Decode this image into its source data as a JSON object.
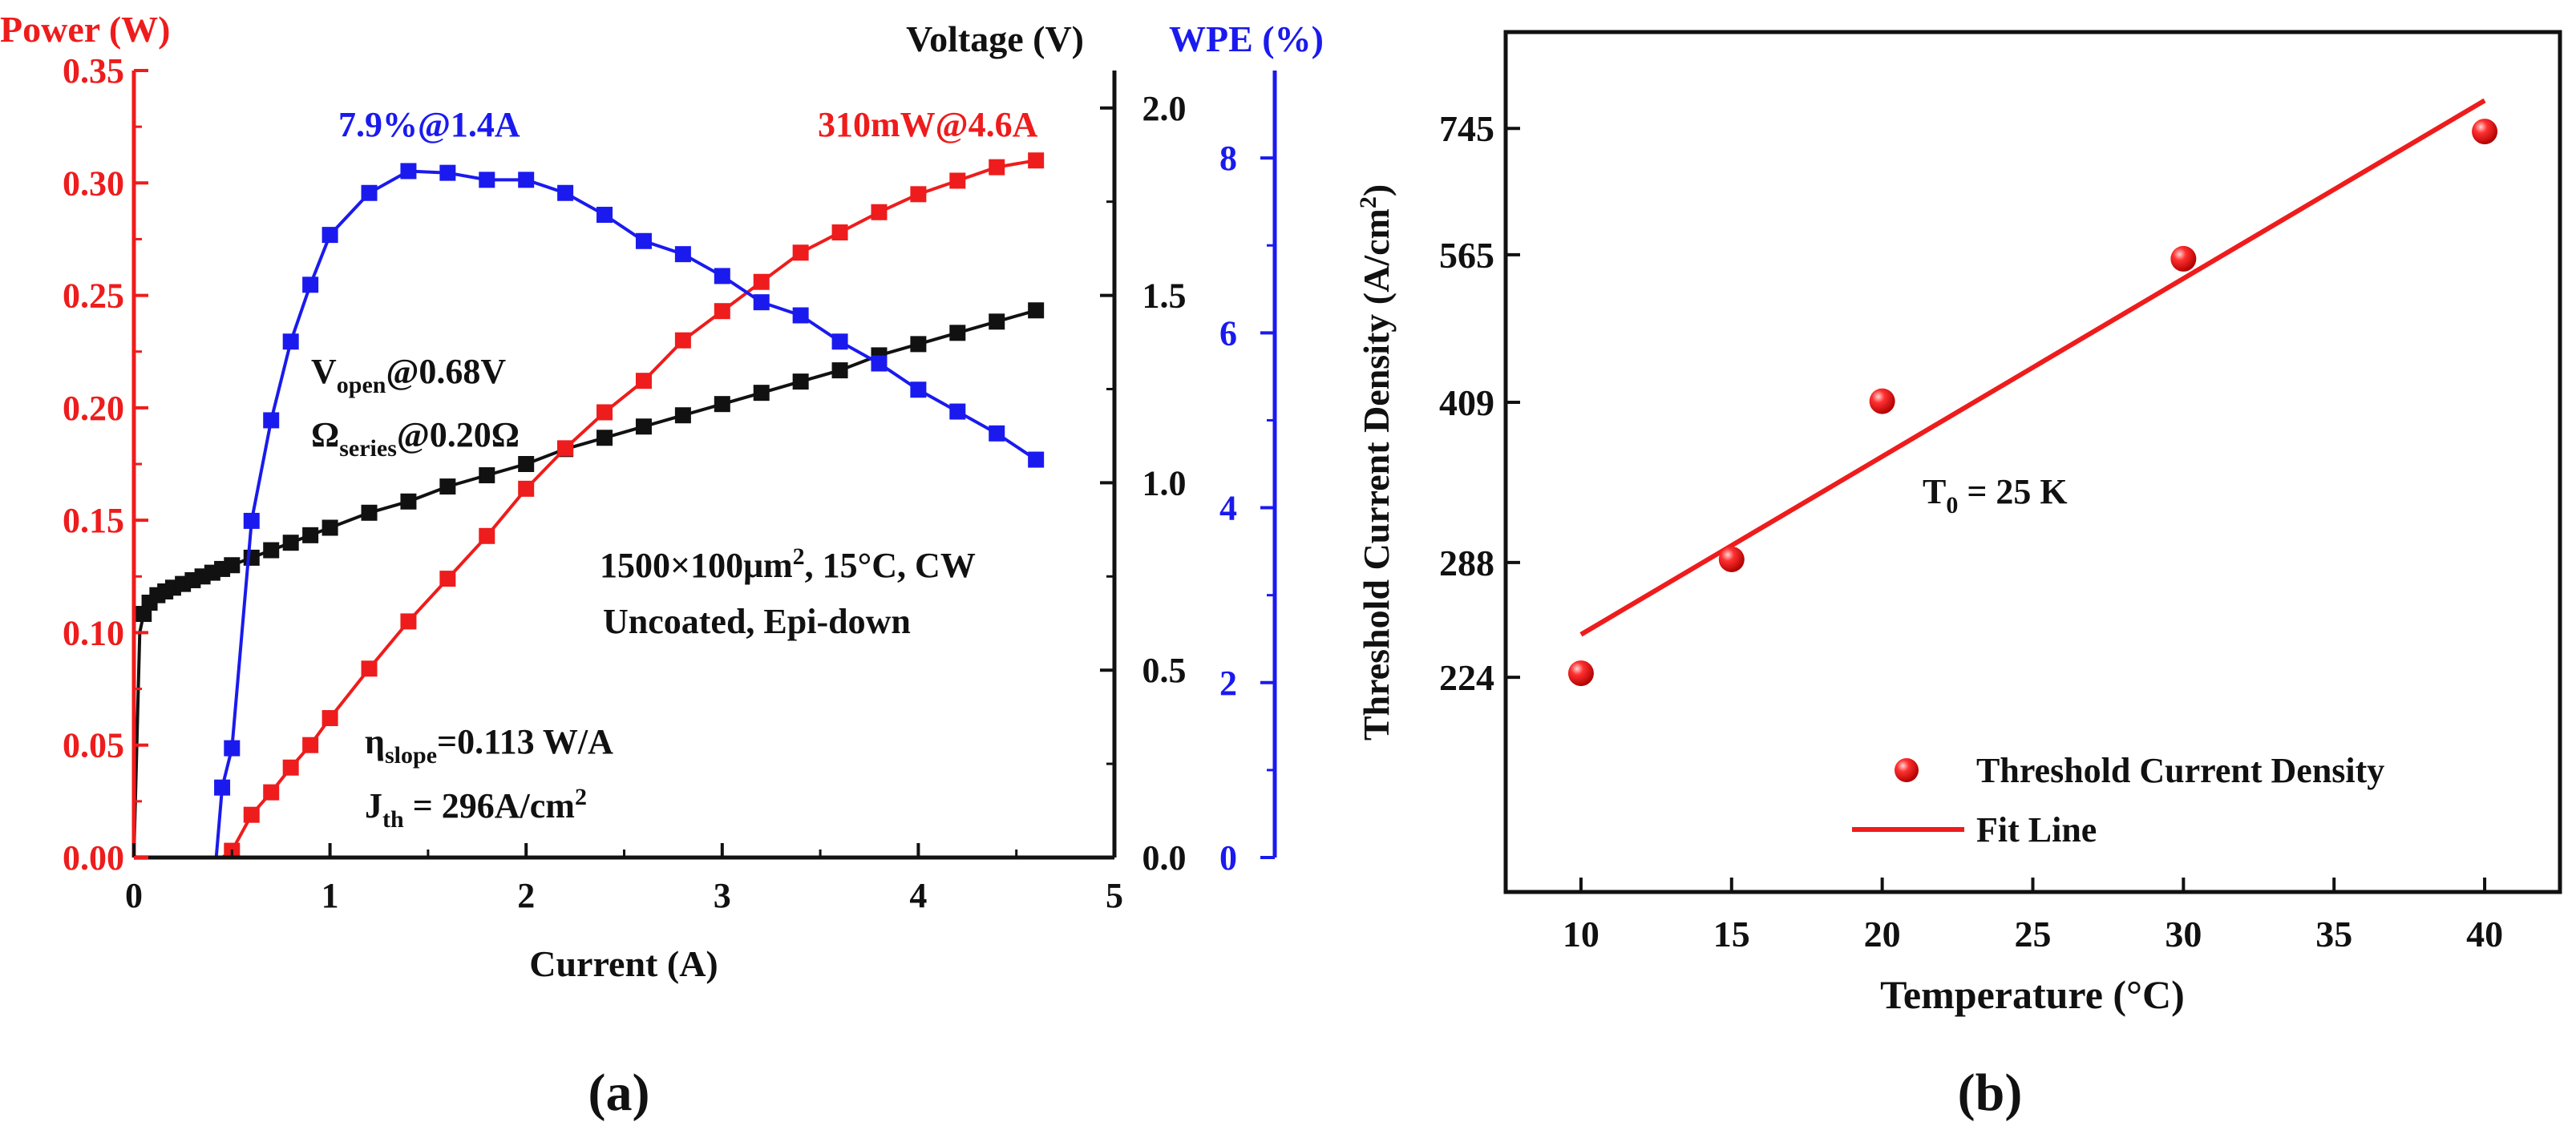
{
  "colors": {
    "power": "#ee1c1c",
    "voltage": "#111111",
    "wpe": "#1a1aee",
    "fit": "#ee1c1c",
    "axis": "#111111"
  },
  "panel_a": {
    "label": "(a)",
    "ylabel_left": "Power (W)",
    "ylabel_right1": "Voltage (V)",
    "ylabel_right2": "WPE (%)",
    "xlabel": "Current (A)",
    "ann_wpe_peak": "7.9%@1.4A",
    "ann_power_peak": "310mW@4.6A",
    "ann_vopen_main": "V",
    "ann_vopen_sub": "open",
    "ann_vopen_value": "@0.68V",
    "ann_rseries_main": "Ω",
    "ann_rseries_sub": "series",
    "ann_rseries_value": "@0.20Ω",
    "ann_conditions_line1_main": "1500×100μm",
    "ann_conditions_line1_sup": "2",
    "ann_conditions_line1_rest": ", 15°C, CW",
    "ann_conditions_line2": "Uncoated, Epi-down",
    "ann_slope_main": "η",
    "ann_slope_sub": "slope",
    "ann_slope_value": "=0.113 W/A",
    "ann_jth_main": "J",
    "ann_jth_sub": "th",
    "ann_jth_value": " = 296A/cm",
    "ann_jth_sup": "2",
    "x_ticks": [
      "0",
      "1",
      "2",
      "3",
      "4",
      "5"
    ],
    "yl_ticks": [
      "0.00",
      "0.05",
      "0.10",
      "0.15",
      "0.20",
      "0.25",
      "0.30",
      "0.35"
    ],
    "yr1_ticks": [
      "0.0",
      "0.5",
      "1.0",
      "1.5",
      "2.0"
    ],
    "yr2_ticks": [
      "0",
      "2",
      "4",
      "6",
      "8"
    ]
  },
  "panel_b": {
    "label": "(b)",
    "xlabel": "Temperature (°C)",
    "ylabel_main": "Threshold Current Density (A/cm",
    "ylabel_sup": "2",
    "ylabel_end": ")",
    "annotation_main": "T",
    "annotation_sub": "0",
    "annotation_value": " = 25 K",
    "legend_points": "Threshold Current Density",
    "legend_line": "Fit Line",
    "x_ticks": [
      "10",
      "15",
      "20",
      "25",
      "30",
      "35",
      "40"
    ],
    "y_ticks": [
      "224",
      "288",
      "409",
      "565",
      "745"
    ]
  },
  "chart_data": [
    {
      "type": "line",
      "title": "",
      "xlabel": "Current (A)",
      "xlim": [
        0,
        5
      ],
      "series": [
        {
          "name": "Power (W)",
          "axis": "left",
          "ylim": [
            0,
            0.35
          ],
          "marker": "square",
          "x": [
            0.0,
            0.45,
            0.5,
            0.6,
            0.7,
            0.8,
            0.9,
            1.0,
            1.2,
            1.4,
            1.6,
            1.8,
            2.0,
            2.2,
            2.4,
            2.6,
            2.8,
            3.0,
            3.2,
            3.4,
            3.6,
            3.8,
            4.0,
            4.2,
            4.4,
            4.6
          ],
          "y": [
            0.0,
            0.0,
            0.003,
            0.019,
            0.029,
            0.04,
            0.05,
            0.062,
            0.084,
            0.105,
            0.124,
            0.143,
            0.164,
            0.182,
            0.198,
            0.212,
            0.23,
            0.243,
            0.256,
            0.269,
            0.278,
            0.287,
            0.295,
            0.301,
            0.307,
            0.31
          ],
          "marker_from": 2
        },
        {
          "name": "Voltage (V)",
          "axis": "right1",
          "ylim": [
            0,
            2.1
          ],
          "marker": "square",
          "x": [
            0.0,
            0.03,
            0.05,
            0.08,
            0.12,
            0.16,
            0.2,
            0.25,
            0.3,
            0.35,
            0.4,
            0.45,
            0.5,
            0.6,
            0.7,
            0.8,
            0.9,
            1.0,
            1.2,
            1.4,
            1.6,
            1.8,
            2.0,
            2.2,
            2.4,
            2.6,
            2.8,
            3.0,
            3.2,
            3.4,
            3.6,
            3.8,
            4.0,
            4.2,
            4.4,
            4.6
          ],
          "y": [
            0.0,
            0.6,
            0.65,
            0.68,
            0.7,
            0.71,
            0.72,
            0.73,
            0.74,
            0.75,
            0.76,
            0.77,
            0.78,
            0.8,
            0.82,
            0.84,
            0.86,
            0.88,
            0.92,
            0.95,
            0.99,
            1.02,
            1.05,
            1.09,
            1.12,
            1.15,
            1.18,
            1.21,
            1.24,
            1.27,
            1.3,
            1.34,
            1.37,
            1.4,
            1.43,
            1.46
          ],
          "marker_from": 2
        },
        {
          "name": "WPE (%)",
          "axis": "right2",
          "ylim": [
            0,
            9
          ],
          "marker": "square",
          "x": [
            0.0,
            0.42,
            0.45,
            0.5,
            0.6,
            0.7,
            0.8,
            0.9,
            1.0,
            1.2,
            1.4,
            1.6,
            1.8,
            2.0,
            2.2,
            2.4,
            2.6,
            2.8,
            3.0,
            3.2,
            3.4,
            3.6,
            3.8,
            4.0,
            4.2,
            4.4,
            4.6
          ],
          "y": [
            0.0,
            0.0,
            0.8,
            1.25,
            3.85,
            5.0,
            5.9,
            6.55,
            7.12,
            7.6,
            7.85,
            7.83,
            7.75,
            7.75,
            7.6,
            7.35,
            7.05,
            6.9,
            6.65,
            6.35,
            6.2,
            5.9,
            5.65,
            5.35,
            5.1,
            4.85,
            4.55
          ],
          "marker_from": 2
        }
      ]
    },
    {
      "type": "scatter",
      "title": "",
      "xlabel": "Temperature (°C)",
      "ylabel": "Threshold Current Density (A/cm2)",
      "xlim": [
        7.5,
        42.5
      ],
      "y_scale": "log",
      "ylim": [
        140,
        920
      ],
      "series": [
        {
          "name": "Threshold Current Density",
          "x": [
            10,
            15,
            20,
            30,
            40
          ],
          "y": [
            226,
            290,
            410,
            560,
            740
          ]
        },
        {
          "name": "Fit Line",
          "type": "line",
          "x": [
            10,
            40
          ],
          "y": [
            246,
            792
          ]
        }
      ]
    }
  ]
}
